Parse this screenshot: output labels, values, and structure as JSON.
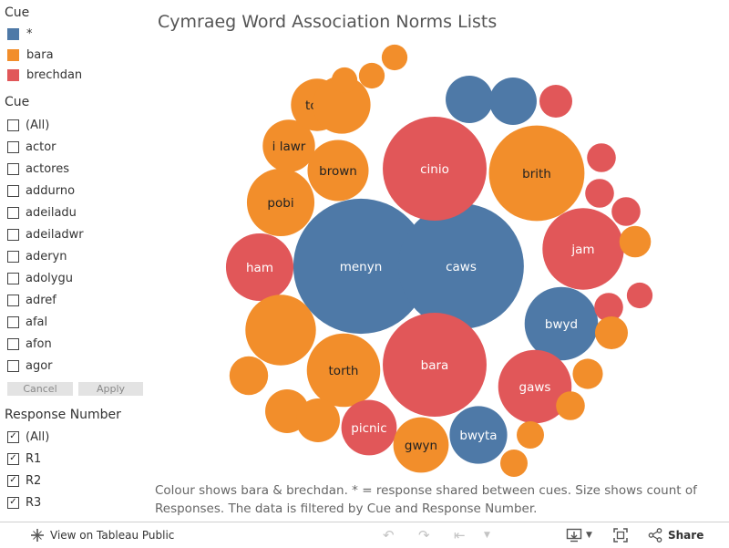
{
  "sidebar": {
    "legend_title": "Cue",
    "legend": [
      {
        "label": "*",
        "color": "#4e79a7"
      },
      {
        "label": "bara",
        "color": "#f28e2b"
      },
      {
        "label": "brechdan",
        "color": "#e15759"
      }
    ],
    "cue_filter": {
      "title": "Cue",
      "items": [
        {
          "label": "(All)",
          "checked": false
        },
        {
          "label": "actor",
          "checked": false
        },
        {
          "label": "actores",
          "checked": false
        },
        {
          "label": "addurno",
          "checked": false
        },
        {
          "label": "adeiladu",
          "checked": false
        },
        {
          "label": "adeiladwr",
          "checked": false
        },
        {
          "label": "aderyn",
          "checked": false
        },
        {
          "label": "adolygu",
          "checked": false
        },
        {
          "label": "adref",
          "checked": false
        },
        {
          "label": "afal",
          "checked": false
        },
        {
          "label": "afon",
          "checked": false
        },
        {
          "label": "agor",
          "checked": false
        }
      ],
      "cancel_label": "Cancel",
      "apply_label": "Apply"
    },
    "response_filter": {
      "title": "Response Number",
      "items": [
        {
          "label": "(All)",
          "checked": true
        },
        {
          "label": "R1",
          "checked": true
        },
        {
          "label": "R2",
          "checked": true
        },
        {
          "label": "R3",
          "checked": true
        }
      ]
    }
  },
  "chart_data": {
    "type": "packed-bubble",
    "title": "Cymraeg Word Association Norms Lists",
    "caption": "Colour shows bara & brechdan. * = response shared between cues. Size shows count of Responses. The data is filtered by Cue and Response Number.",
    "color_map": {
      "*": "#4e79a7",
      "bara": "#f28e2b",
      "brechdan": "#e15759"
    },
    "size_measure": "count of Responses",
    "bubbles": [
      {
        "label": "menyn",
        "cue": "*",
        "size": 22
      },
      {
        "label": "caws",
        "cue": "*",
        "size": 19
      },
      {
        "label": "cinio",
        "cue": "brechdan",
        "size": 13
      },
      {
        "label": "bara",
        "cue": "brechdan",
        "size": 13
      },
      {
        "label": "brith",
        "cue": "bara",
        "size": 11
      },
      {
        "label": "jam",
        "cue": "brechdan",
        "size": 8
      },
      {
        "label": "bwyd",
        "cue": "*",
        "size": 6.5
      },
      {
        "label": "gaws",
        "cue": "brechdan",
        "size": 6.5
      },
      {
        "label": "torth",
        "cue": "bara",
        "size": 6.5
      },
      {
        "label": "pobi",
        "cue": "bara",
        "size": 5.5
      },
      {
        "label": "ham",
        "cue": "brechdan",
        "size": 5.5
      },
      {
        "label": "brown",
        "cue": "bara",
        "size": 4.5
      },
      {
        "label": "bwyta",
        "cue": "*",
        "size": 4
      },
      {
        "label": "picnic",
        "cue": "brechdan",
        "size": 3.7
      },
      {
        "label": "gwyn",
        "cue": "bara",
        "size": 3.7
      },
      {
        "label": "i lawr",
        "cue": "bara",
        "size": 3.3
      },
      {
        "label": "tost",
        "cue": "bara",
        "size": 3.3
      },
      {
        "label": "",
        "cue": "bara",
        "size": 6
      },
      {
        "label": "",
        "cue": "bara",
        "size": 4
      },
      {
        "label": "",
        "cue": "*",
        "size": 2.7
      },
      {
        "label": "",
        "cue": "*",
        "size": 2.7
      },
      {
        "label": "",
        "cue": "bara",
        "size": 2.3
      },
      {
        "label": "",
        "cue": "bara",
        "size": 2.3
      },
      {
        "label": "",
        "cue": "bara",
        "size": 1.8
      },
      {
        "label": "",
        "cue": "brechdan",
        "size": 1.3
      },
      {
        "label": "",
        "cue": "brechdan",
        "size": 1
      },
      {
        "label": "",
        "cue": "brechdan",
        "size": 1
      },
      {
        "label": "",
        "cue": "brechdan",
        "size": 1
      },
      {
        "label": "",
        "cue": "brechdan",
        "size": 1
      },
      {
        "label": "",
        "cue": "brechdan",
        "size": 0.8
      },
      {
        "label": "",
        "cue": "bara",
        "size": 1.3
      },
      {
        "label": "",
        "cue": "bara",
        "size": 1.2
      },
      {
        "label": "",
        "cue": "bara",
        "size": 1.1
      },
      {
        "label": "",
        "cue": "bara",
        "size": 1
      },
      {
        "label": "",
        "cue": "bara",
        "size": 0.9
      },
      {
        "label": "",
        "cue": "bara",
        "size": 0.9
      },
      {
        "label": "",
        "cue": "bara",
        "size": 0.8
      },
      {
        "label": "",
        "cue": "bara",
        "size": 0.8
      },
      {
        "label": "",
        "cue": "bara",
        "size": 0.8
      }
    ]
  },
  "toolbar": {
    "view_label": "View on Tableau Public",
    "share_label": "Share",
    "icons": [
      "tableau-logo-icon",
      "undo-icon",
      "redo-icon",
      "revert-icon",
      "download-icon",
      "fullscreen-icon",
      "share-icon"
    ]
  }
}
